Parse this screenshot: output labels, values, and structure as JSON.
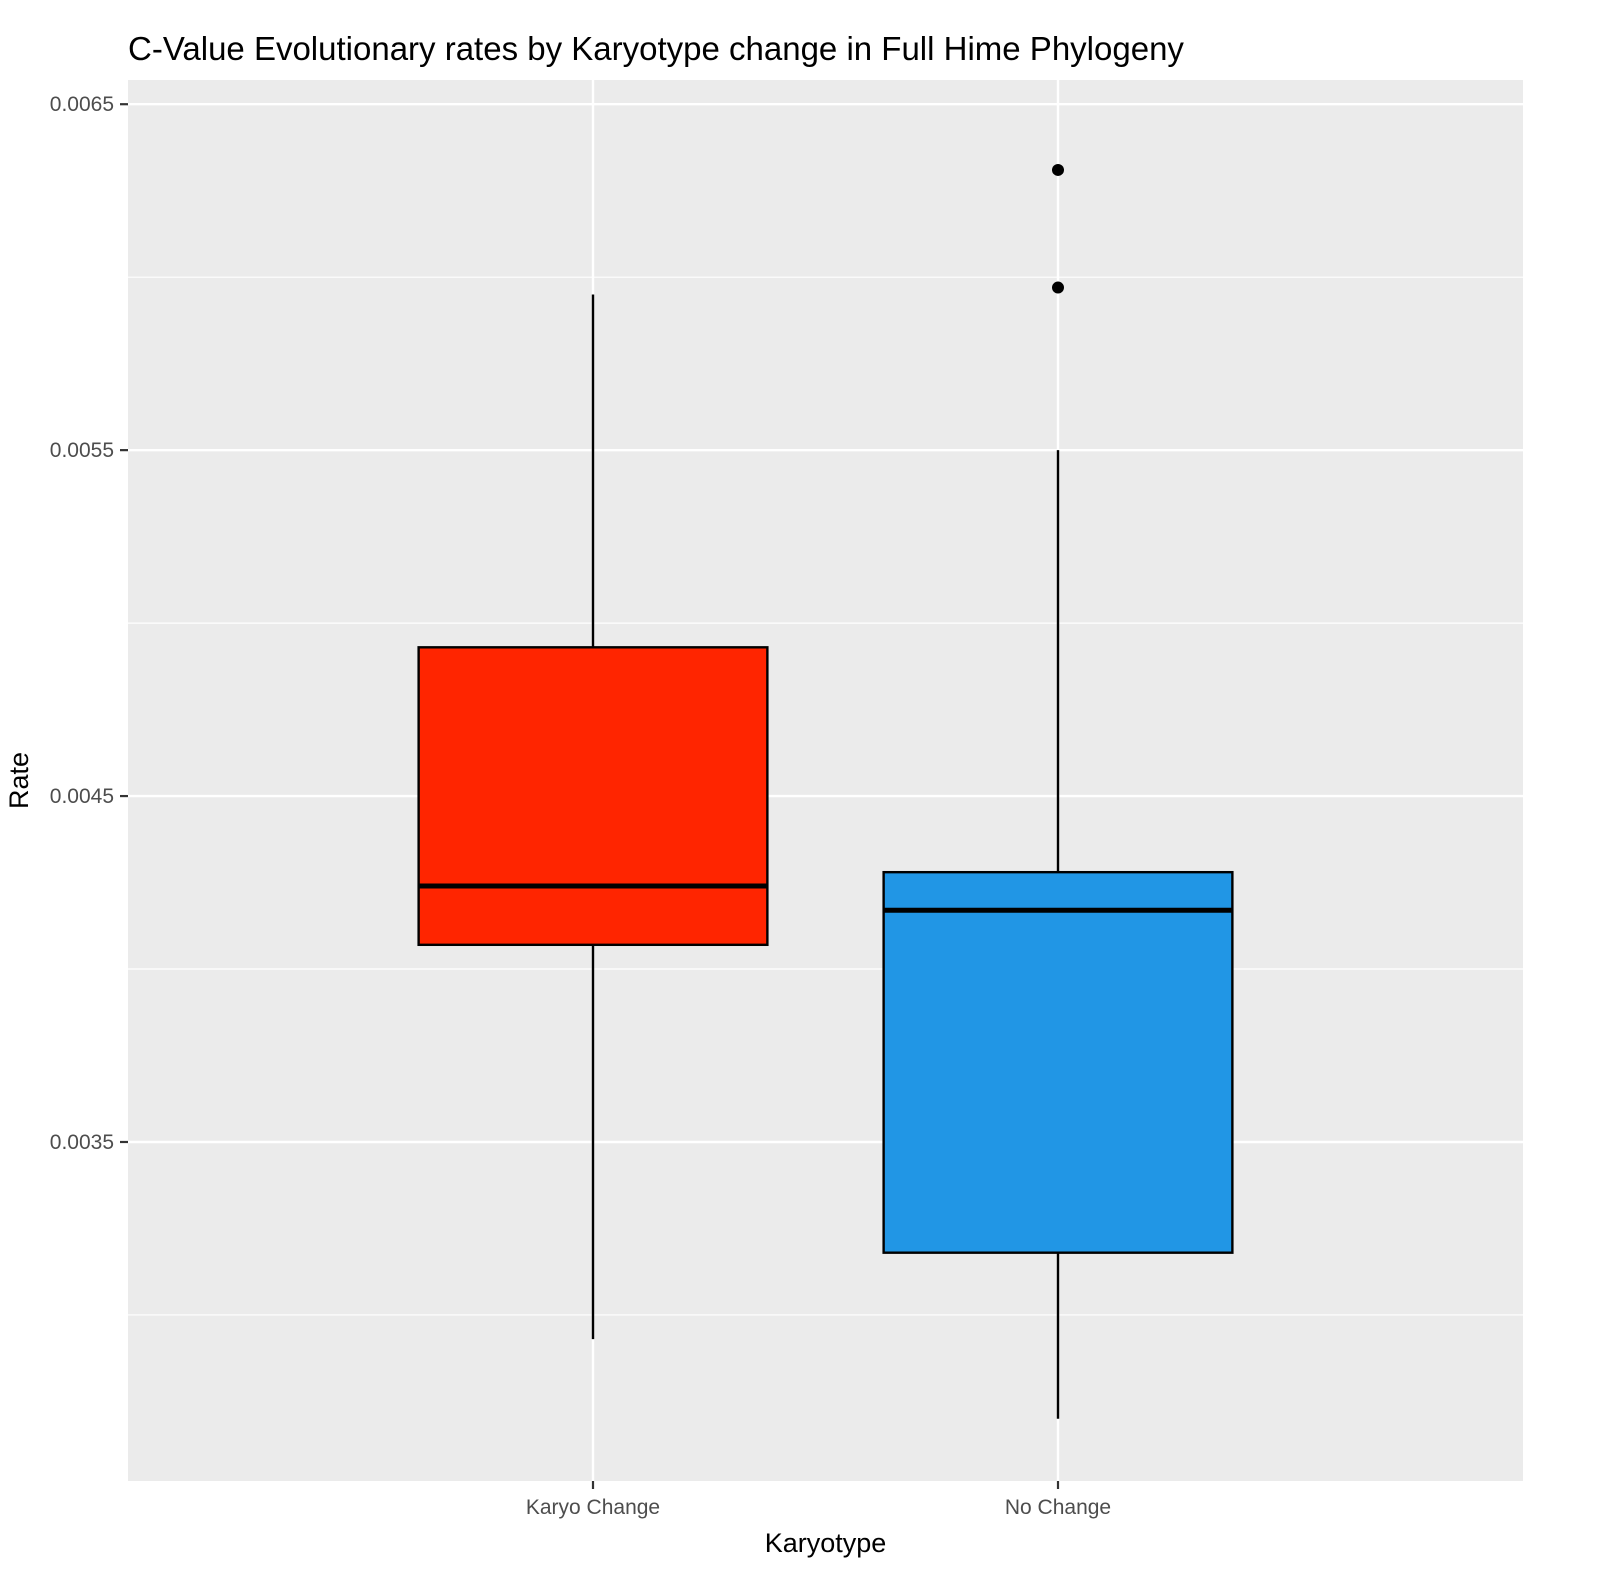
{
  "chart_data": {
    "type": "box",
    "title": "C-Value Evolutionary rates by Karyotype change in Full Hime Phylogeny",
    "xlabel": "Karyotype",
    "ylabel": "Rate",
    "ylim": [
      0.00252,
      0.00657
    ],
    "y_ticks": [
      0.0035,
      0.0045,
      0.0055,
      0.0065
    ],
    "y_tick_labels": [
      "0.0035",
      "0.0045",
      "0.0055",
      "0.0065"
    ],
    "y_minor_ticks": [
      0.003,
      0.004,
      0.005,
      0.006
    ],
    "grid": true,
    "legend": "none",
    "categories": [
      "Karyo Change",
      "No Change"
    ],
    "boxes": [
      {
        "category": "Karyo Change",
        "color": "#ff2500",
        "whisker_low": 0.00293,
        "q1": 0.00407,
        "median": 0.00424,
        "q3": 0.00493,
        "whisker_high": 0.00595,
        "outliers": []
      },
      {
        "category": "No Change",
        "color": "#2196e5",
        "whisker_low": 0.0027,
        "q1": 0.00318,
        "median": 0.00417,
        "q3": 0.00428,
        "whisker_high": 0.0055,
        "outliers": [
          0.00597,
          0.00631
        ]
      }
    ]
  }
}
